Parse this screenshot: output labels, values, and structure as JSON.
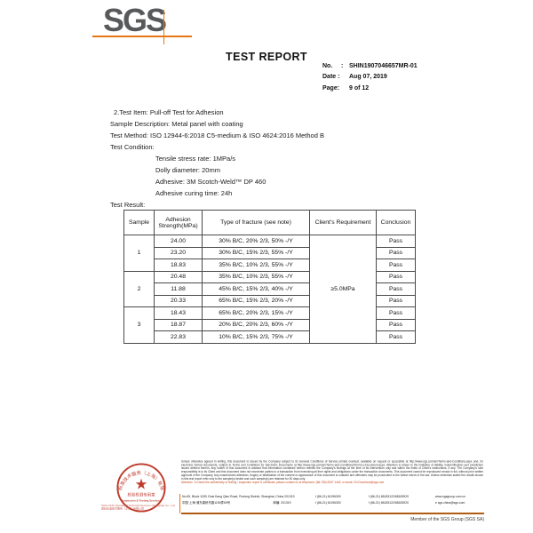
{
  "header": {
    "logo": "SGS",
    "title": "TEST REPORT",
    "meta": {
      "no_label": "No.",
      "no_colon": ":",
      "no_value": "SHIN1907046657MR-01",
      "date_label": "Date :",
      "date_value": "Aug 07, 2019",
      "page_label": "Page:",
      "page_value": "9 of 12"
    }
  },
  "body": {
    "test_item": "2.Test Item: Pull-off Test for Adhesion",
    "sample_description": "Sample Description: Metal panel with coating",
    "test_method": "Test Method: ISO 12944-6:2018 C5-medium & ISO 4624:2016 Method B",
    "test_condition_label": "Test Condition:",
    "conditions": [
      "Tensile stress rate: 1MPa/s",
      "Dolly diameter:  20mm",
      "Adhesive: 3M Scotch-Weld™ DP 460",
      "Adhesive curing time: 24h"
    ],
    "test_result_label": "Test Result:"
  },
  "table": {
    "headers": [
      "Sample",
      "Adhesion Strength(MPa)",
      "Type of fracture (see note)",
      "Client's Requirement",
      "Conclusion"
    ],
    "client_requirement": "≥5.0MPa",
    "groups": [
      {
        "sample": "1",
        "rows": [
          [
            "24.00",
            "30% B/C, 20% 2/3, 50% -/Y",
            "Pass"
          ],
          [
            "23.20",
            "30% B/C, 15% 2/3, 55% -/Y",
            "Pass"
          ],
          [
            "18.83",
            "35% B/C, 10% 2/3, 55% -/Y",
            "Pass"
          ]
        ]
      },
      {
        "sample": "2",
        "rows": [
          [
            "20.48",
            "35% B/C, 10% 2/3, 55% -/Y",
            "Pass"
          ],
          [
            "11.88",
            "45% B/C, 15% 2/3, 40% -/Y",
            "Pass"
          ],
          [
            "20.33",
            "65% B/C, 15% 2/3, 20% -/Y",
            "Pass"
          ]
        ]
      },
      {
        "sample": "3",
        "rows": [
          [
            "18.43",
            "65% B/C, 20% 2/3, 15% -/Y",
            "Pass"
          ],
          [
            "18.87",
            "20% B/C, 20% 2/3, 60% -/Y",
            "Pass"
          ],
          [
            "22.83",
            "10% B/C, 15% 2/3, 75% -/Y",
            "Pass"
          ]
        ]
      }
    ]
  },
  "footer": {
    "stamp": {
      "arc_text": "通标标准技术服务（上海）有限公司",
      "star": "★",
      "line1": "检验检测专用章",
      "line2": "Inspection & Testing Services"
    },
    "stamp_caption_line1": "SGS-CSTC Standards Technical Services (Shanghai) Co., Ltd.",
    "stamp_caption_line2": "通标标准技术服务（上海）有限公司",
    "disclaimer": "Unless otherwise agreed in writing, this document is issued by the Company subject to its General Conditions of Service printed overleaf, available on request or accessible at http://www.sgs.com/en/Terms-and-Conditions.aspx and, for electronic format documents, subject to Terms and Conditions for Electronic Documents at http://www.sgs.com/en/Terms-and-Conditions/Terms-e-Document.aspx. Attention is drawn to the limitation of liability, indemnification and jurisdiction issues defined therein. Any holder of this document is advised that information contained hereon reflects the Company's findings at the time of its intervention only and within the limits of Client's instructions, if any. The Company's sole responsibility is to its Client and this document does not exonerate parties to a transaction from exercising all their rights and obligations under the transaction documents. This document cannot be reproduced except in full, without prior written approval of the Company. Any unauthorized alteration, forgery or falsification of the content or appearance of this document is unlawful and offenders may be prosecuted to the fullest extent of the law. Unless otherwise stated the results shown in this test report refer only to the sample(s) tested and such sample(s) are retained for 30 days only.",
    "attention": "Attention: To check the authenticity of testing / inspection report & certificate, please contact us at telephone: (86-755) 8307 1443, or email: CN.Doccheck@sgs.com",
    "address_rows": [
      [
        "No.69, Block 1159, East Kang Qiao Road, Pudong District, Shanghai, China  201319",
        "t (86-21) 61196300",
        "f (86-21) 68183122/68183920",
        "www.sgsgroup.com.cn"
      ],
      [
        "中国·上海·浦东康桥东路1159弄69号",
        "邮编: 201319",
        "t (86-21) 61196300",
        "f (86-21) 68183122/68183920",
        "e sgs.china@sgs.com"
      ]
    ],
    "member_text": "Member of the SGS Group (SGS SA)"
  },
  "colors": {
    "sgs_gray": "#58595b",
    "sgs_orange": "#e87511",
    "stamp_red": "#bf3a2b",
    "attention_red": "#c2491f"
  }
}
